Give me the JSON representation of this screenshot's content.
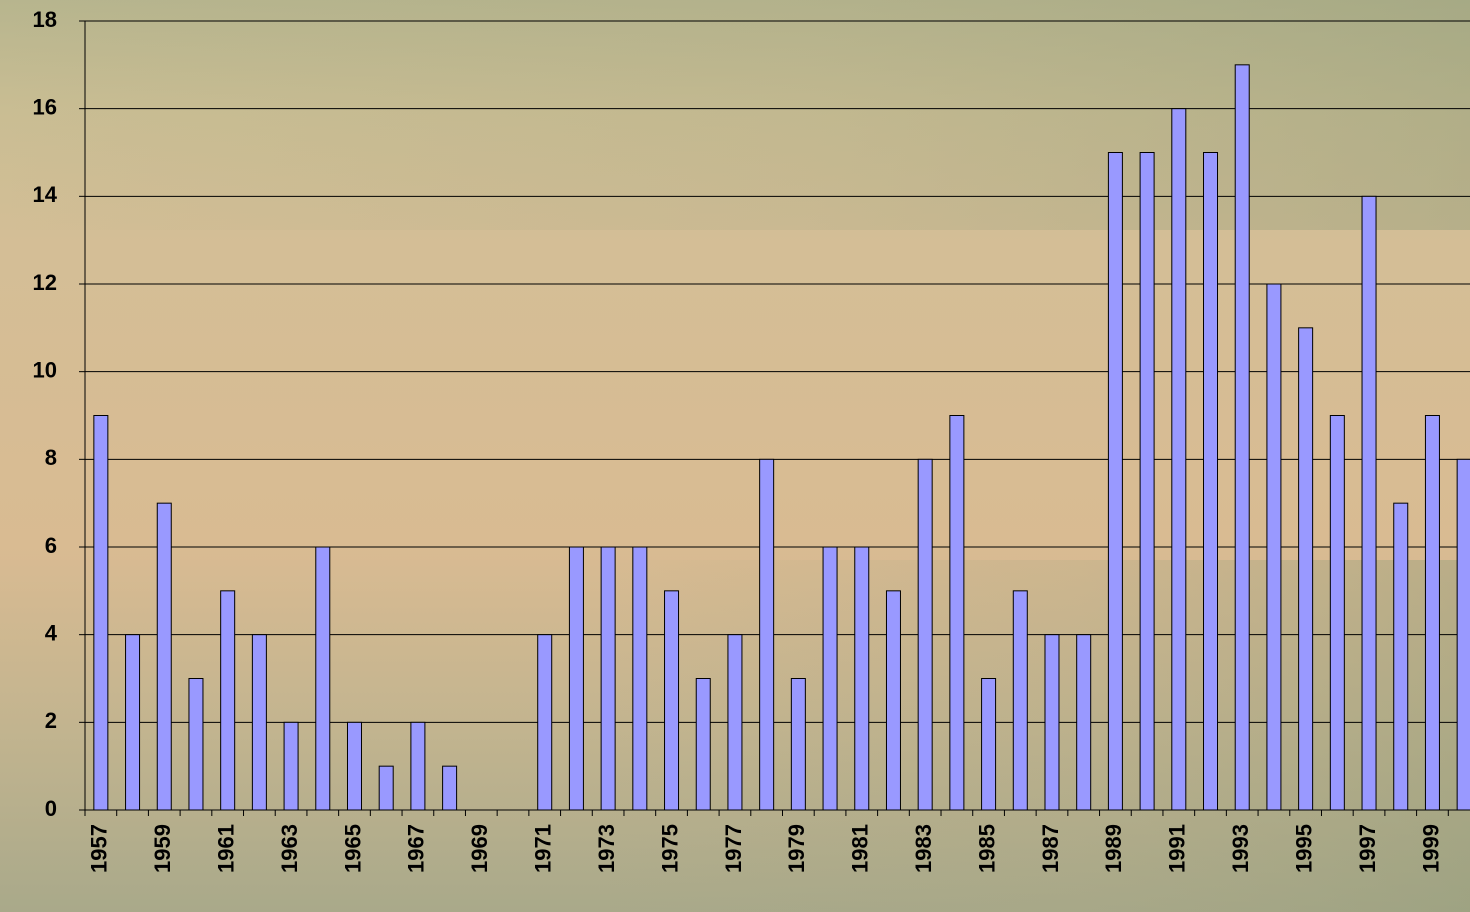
{
  "chart_data": {
    "type": "bar",
    "categories": [
      "1957",
      null,
      "1959",
      null,
      "1961",
      null,
      "1963",
      null,
      "1965",
      null,
      "1967",
      null,
      "1969",
      null,
      "1971",
      null,
      "1973",
      null,
      "1975",
      null,
      "1977",
      null,
      "1979",
      null,
      "1981",
      null,
      "1983",
      null,
      "1985",
      null,
      "1987",
      null,
      "1989",
      null,
      "1991",
      null,
      "1993",
      null,
      "1995",
      null,
      "1997",
      null,
      "1999",
      null
    ],
    "values": [
      9,
      4,
      7,
      3,
      5,
      4,
      2,
      6,
      2,
      1,
      2,
      1,
      0,
      0,
      4,
      6,
      6,
      6,
      5,
      3,
      4,
      8,
      3,
      6,
      6,
      5,
      8,
      9,
      3,
      5,
      4,
      4,
      15,
      15,
      16,
      15,
      17,
      12,
      11,
      9,
      14,
      7,
      9,
      8
    ],
    "color": "#9999ff",
    "ylim": [
      0,
      18
    ],
    "yticks": [
      0,
      2,
      4,
      6,
      8,
      10,
      12,
      14,
      16,
      18
    ],
    "grid": true
  }
}
